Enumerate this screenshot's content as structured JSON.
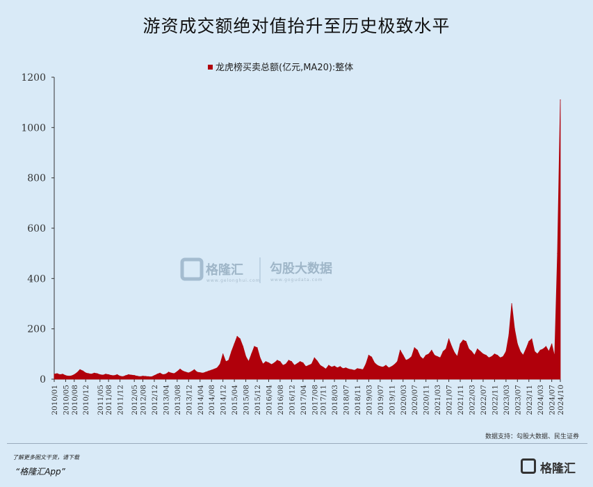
{
  "title": "游资成交额绝对值抬升至历史极致水平",
  "chart_data": {
    "type": "area",
    "title": "游资成交额绝对值抬升至历史极致水平",
    "series": [
      {
        "name": "龙虎榜买卖总额(亿元,MA20):整体",
        "color": "#b0000b",
        "points": [
          [
            "2010-01",
            20
          ],
          [
            "2010-02",
            22
          ],
          [
            "2010-03",
            18
          ],
          [
            "2010-04",
            20
          ],
          [
            "2010-05",
            14
          ],
          [
            "2010-06",
            12
          ],
          [
            "2010-07",
            13
          ],
          [
            "2010-08",
            18
          ],
          [
            "2010-09",
            26
          ],
          [
            "2010-10",
            38
          ],
          [
            "2010-11",
            33
          ],
          [
            "2010-12",
            25
          ],
          [
            "2011-01",
            22
          ],
          [
            "2011-02",
            20
          ],
          [
            "2011-03",
            24
          ],
          [
            "2011-04",
            22
          ],
          [
            "2011-05",
            18
          ],
          [
            "2011-06",
            16
          ],
          [
            "2011-07",
            20
          ],
          [
            "2011-08",
            18
          ],
          [
            "2011-09",
            15
          ],
          [
            "2011-10",
            14
          ],
          [
            "2011-11",
            18
          ],
          [
            "2011-12",
            12
          ],
          [
            "2012-01",
            10
          ],
          [
            "2012-02",
            14
          ],
          [
            "2012-03",
            18
          ],
          [
            "2012-04",
            16
          ],
          [
            "2012-05",
            15
          ],
          [
            "2012-06",
            12
          ],
          [
            "2012-07",
            10
          ],
          [
            "2012-08",
            12
          ],
          [
            "2012-09",
            11
          ],
          [
            "2012-10",
            10
          ],
          [
            "2012-11",
            9
          ],
          [
            "2012-12",
            14
          ],
          [
            "2013-01",
            20
          ],
          [
            "2013-02",
            24
          ],
          [
            "2013-03",
            18
          ],
          [
            "2013-04",
            20
          ],
          [
            "2013-05",
            28
          ],
          [
            "2013-06",
            24
          ],
          [
            "2013-07",
            22
          ],
          [
            "2013-08",
            30
          ],
          [
            "2013-09",
            40
          ],
          [
            "2013-10",
            32
          ],
          [
            "2013-11",
            28
          ],
          [
            "2013-12",
            25
          ],
          [
            "2014-01",
            30
          ],
          [
            "2014-02",
            38
          ],
          [
            "2014-03",
            28
          ],
          [
            "2014-04",
            26
          ],
          [
            "2014-05",
            24
          ],
          [
            "2014-06",
            28
          ],
          [
            "2014-07",
            32
          ],
          [
            "2014-08",
            36
          ],
          [
            "2014-09",
            40
          ],
          [
            "2014-10",
            45
          ],
          [
            "2014-11",
            60
          ],
          [
            "2014-12",
            100
          ],
          [
            "2015-01",
            70
          ],
          [
            "2015-02",
            75
          ],
          [
            "2015-03",
            110
          ],
          [
            "2015-04",
            140
          ],
          [
            "2015-05",
            170
          ],
          [
            "2015-06",
            160
          ],
          [
            "2015-07",
            130
          ],
          [
            "2015-08",
            90
          ],
          [
            "2015-09",
            70
          ],
          [
            "2015-10",
            100
          ],
          [
            "2015-11",
            130
          ],
          [
            "2015-12",
            125
          ],
          [
            "2016-01",
            85
          ],
          [
            "2016-02",
            60
          ],
          [
            "2016-03",
            70
          ],
          [
            "2016-04",
            65
          ],
          [
            "2016-05",
            58
          ],
          [
            "2016-06",
            65
          ],
          [
            "2016-07",
            75
          ],
          [
            "2016-08",
            70
          ],
          [
            "2016-09",
            55
          ],
          [
            "2016-10",
            60
          ],
          [
            "2016-11",
            75
          ],
          [
            "2016-12",
            70
          ],
          [
            "2017-01",
            55
          ],
          [
            "2017-02",
            62
          ],
          [
            "2017-03",
            70
          ],
          [
            "2017-04",
            65
          ],
          [
            "2017-05",
            50
          ],
          [
            "2017-06",
            55
          ],
          [
            "2017-07",
            60
          ],
          [
            "2017-08",
            85
          ],
          [
            "2017-09",
            72
          ],
          [
            "2017-10",
            55
          ],
          [
            "2017-11",
            48
          ],
          [
            "2017-12",
            40
          ],
          [
            "2018-01",
            55
          ],
          [
            "2018-02",
            48
          ],
          [
            "2018-03",
            52
          ],
          [
            "2018-04",
            45
          ],
          [
            "2018-05",
            50
          ],
          [
            "2018-06",
            42
          ],
          [
            "2018-07",
            45
          ],
          [
            "2018-08",
            40
          ],
          [
            "2018-09",
            38
          ],
          [
            "2018-10",
            35
          ],
          [
            "2018-11",
            42
          ],
          [
            "2018-12",
            40
          ],
          [
            "2019-01",
            38
          ],
          [
            "2019-02",
            60
          ],
          [
            "2019-03",
            95
          ],
          [
            "2019-04",
            88
          ],
          [
            "2019-05",
            65
          ],
          [
            "2019-06",
            55
          ],
          [
            "2019-07",
            50
          ],
          [
            "2019-08",
            48
          ],
          [
            "2019-09",
            55
          ],
          [
            "2019-10",
            45
          ],
          [
            "2019-11",
            50
          ],
          [
            "2019-12",
            58
          ],
          [
            "2020-01",
            70
          ],
          [
            "2020-02",
            115
          ],
          [
            "2020-03",
            95
          ],
          [
            "2020-04",
            75
          ],
          [
            "2020-05",
            80
          ],
          [
            "2020-06",
            90
          ],
          [
            "2020-07",
            125
          ],
          [
            "2020-08",
            115
          ],
          [
            "2020-09",
            90
          ],
          [
            "2020-10",
            80
          ],
          [
            "2020-11",
            95
          ],
          [
            "2020-12",
            100
          ],
          [
            "2021-01",
            115
          ],
          [
            "2021-02",
            95
          ],
          [
            "2021-03",
            90
          ],
          [
            "2021-04",
            85
          ],
          [
            "2021-05",
            110
          ],
          [
            "2021-06",
            120
          ],
          [
            "2021-07",
            160
          ],
          [
            "2021-08",
            130
          ],
          [
            "2021-09",
            105
          ],
          [
            "2021-10",
            90
          ],
          [
            "2021-11",
            140
          ],
          [
            "2021-12",
            155
          ],
          [
            "2022-01",
            150
          ],
          [
            "2022-02",
            120
          ],
          [
            "2022-03",
            110
          ],
          [
            "2022-04",
            95
          ],
          [
            "2022-05",
            120
          ],
          [
            "2022-06",
            110
          ],
          [
            "2022-07",
            100
          ],
          [
            "2022-08",
            95
          ],
          [
            "2022-09",
            85
          ],
          [
            "2022-10",
            90
          ],
          [
            "2022-11",
            100
          ],
          [
            "2022-12",
            95
          ],
          [
            "2023-01",
            85
          ],
          [
            "2023-02",
            90
          ],
          [
            "2023-03",
            110
          ],
          [
            "2023-04",
            175
          ],
          [
            "2023-05",
            300
          ],
          [
            "2023-06",
            200
          ],
          [
            "2023-07",
            140
          ],
          [
            "2023-08",
            110
          ],
          [
            "2023-09",
            95
          ],
          [
            "2023-10",
            120
          ],
          [
            "2023-11",
            150
          ],
          [
            "2023-12",
            160
          ],
          [
            "2024-01",
            110
          ],
          [
            "2024-02",
            100
          ],
          [
            "2024-03",
            115
          ],
          [
            "2024-04",
            120
          ],
          [
            "2024-05",
            130
          ],
          [
            "2024-06",
            110
          ],
          [
            "2024-07",
            140
          ],
          [
            "2024-08",
            90
          ],
          [
            "2024-09",
            500
          ],
          [
            "2024-10",
            1110
          ]
        ]
      }
    ],
    "x_tick_labels": [
      "2010/01",
      "2010/05",
      "2010/08",
      "2010/12",
      "2011/05",
      "2011/08",
      "2011/12",
      "2012/05",
      "2012/08",
      "2012/12",
      "2013/04",
      "2013/08",
      "2013/12",
      "2014/04",
      "2014/08",
      "2014/12",
      "2015/04",
      "2015/08",
      "2015/12",
      "2016/04",
      "2016/08",
      "2016/12",
      "2017/04",
      "2017/08",
      "2017/11",
      "2018/03",
      "2018/07",
      "2018/11",
      "2019/03",
      "2019/07",
      "2019/11",
      "2020/03",
      "2020/07",
      "2020/11",
      "2021/03",
      "2021/07",
      "2021/11",
      "2022/03",
      "2022/07",
      "2022/11",
      "2023/03",
      "2023/07",
      "2023/11",
      "2024/03",
      "2024/07",
      "2024/10"
    ],
    "y_ticks": [
      0,
      200,
      400,
      600,
      800,
      1000,
      1200
    ],
    "ylim": [
      0,
      1200
    ],
    "xlim": [
      "2010-01",
      "2024-10"
    ],
    "legend_position": "top-center",
    "grid": false
  },
  "watermark": {
    "brand_name": "格隆汇",
    "brand_url": "www.gelonghui.com",
    "data_name": "勾股大数据",
    "data_url": "www.gogudata.com"
  },
  "source_note": "数据支持：勾股大数据、民生证券",
  "footer": {
    "promo_line1": "了解更多图文干货，请下载",
    "promo_line2": "“格隆汇App”",
    "logo_text": "格隆汇"
  }
}
